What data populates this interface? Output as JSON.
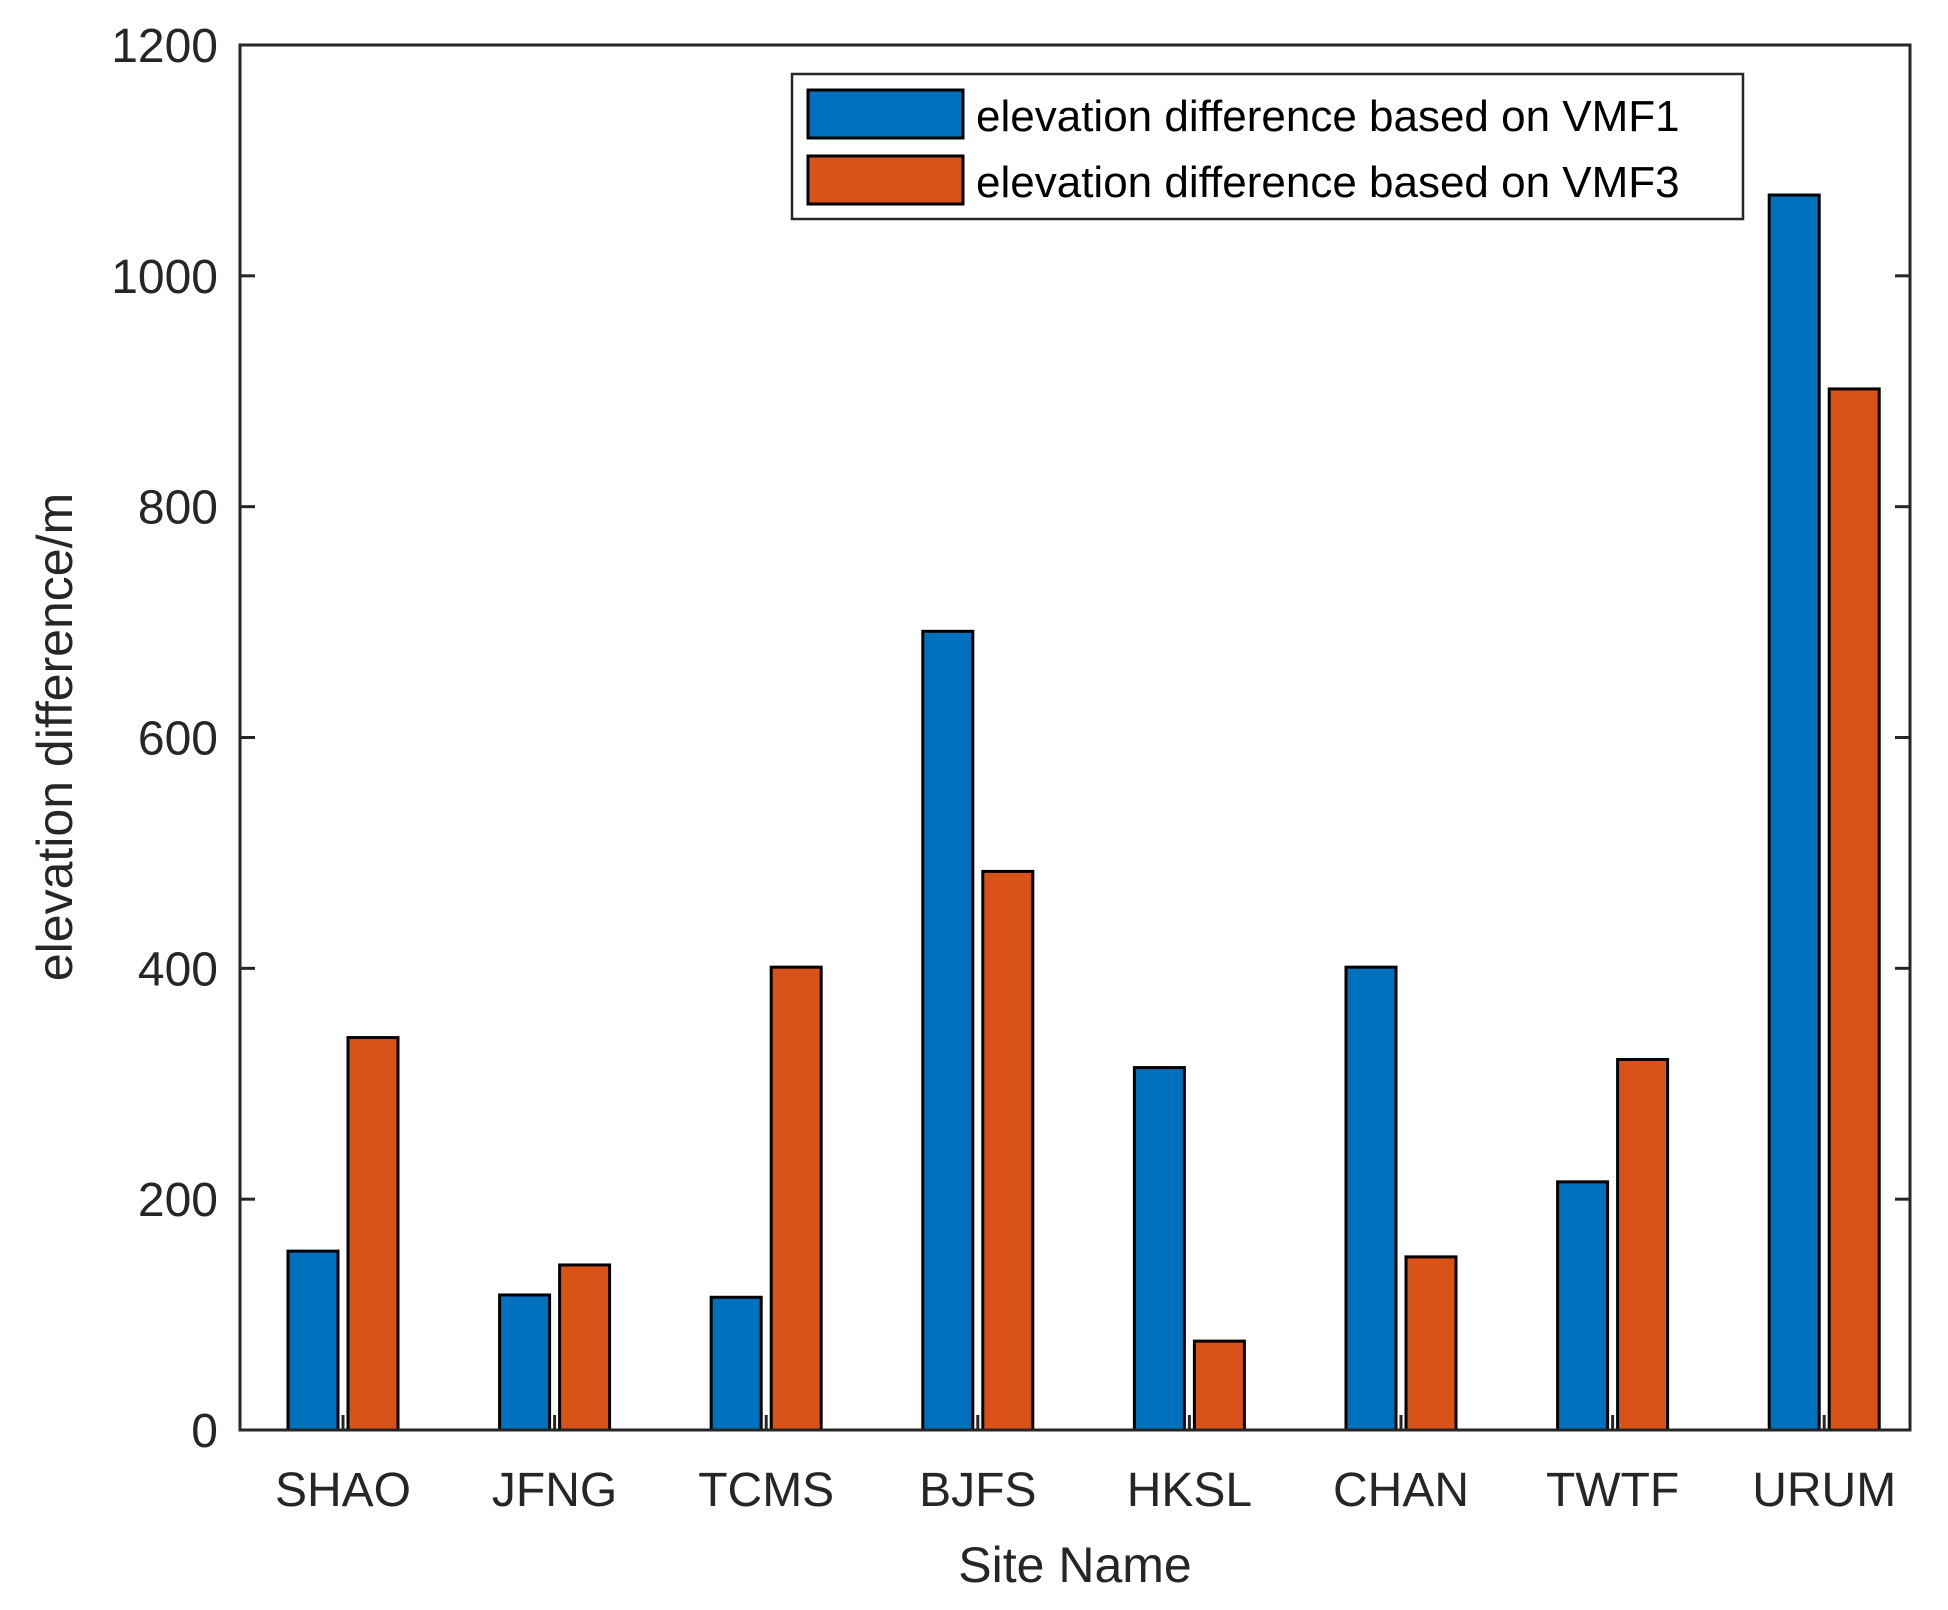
{
  "chart_data": {
    "type": "bar",
    "title": "",
    "xlabel": "Site Name",
    "ylabel": "elevation difference/m",
    "categories": [
      "SHAO",
      "JFNG",
      "TCMS",
      "BJFS",
      "HKSL",
      "CHAN",
      "TWTF",
      "URUM"
    ],
    "series": [
      {
        "name": "elevation difference based on VMF1",
        "color": "#0072BD",
        "values": [
          155,
          117,
          115,
          692,
          314,
          401,
          215,
          1070
        ]
      },
      {
        "name": "elevation difference based on VMF3",
        "color": "#D95319",
        "values": [
          340,
          143,
          401,
          484,
          77,
          150,
          321,
          902
        ]
      }
    ],
    "ylim": [
      0,
      1200
    ],
    "yticks": [
      "0",
      "200",
      "400",
      "600",
      "800",
      "1000",
      "1200"
    ],
    "grid": false,
    "legend_position": "top-right"
  }
}
